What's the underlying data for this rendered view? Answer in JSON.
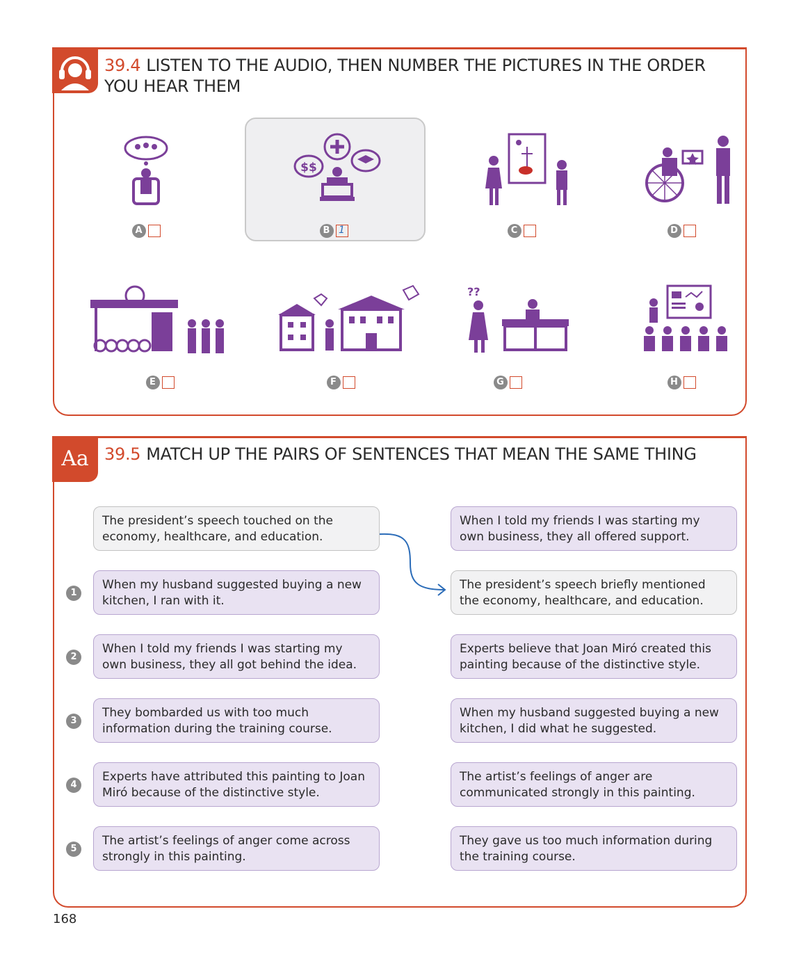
{
  "exercise1": {
    "number": "39.4",
    "title": "LISTEN TO THE AUDIO, THEN NUMBER THE PICTURES IN THE ORDER YOU HEAR THEM",
    "icon": "headphones-person-icon",
    "pictures": [
      {
        "letter": "A",
        "answer": ""
      },
      {
        "letter": "B",
        "answer": "1"
      },
      {
        "letter": "C",
        "answer": ""
      },
      {
        "letter": "D",
        "answer": ""
      },
      {
        "letter": "E",
        "answer": ""
      },
      {
        "letter": "F",
        "answer": ""
      },
      {
        "letter": "G",
        "answer": ""
      },
      {
        "letter": "H",
        "answer": ""
      }
    ]
  },
  "exercise2": {
    "number": "39.5",
    "title": "MATCH UP THE PAIRS OF SENTENCES THAT MEAN THE SAME THING",
    "badge": "Aa",
    "example_left": "The president’s speech touched on the economy, healthcare, and education.",
    "left": [
      {
        "num": "1",
        "text": "When my husband suggested buying a new kitchen, I ran with it."
      },
      {
        "num": "2",
        "text": "When I told my friends I was starting my own business, they all got behind the idea."
      },
      {
        "num": "3",
        "text": "They bombarded us with too much information during the training course."
      },
      {
        "num": "4",
        "text": "Experts have attributed this painting to Joan Miró because of the distinctive style."
      },
      {
        "num": "5",
        "text": "The artist’s feelings of anger come across strongly in this painting."
      }
    ],
    "right": [
      {
        "text": "When I told my friends I was starting my own business, they all offered support."
      },
      {
        "text": "The president’s speech briefly mentioned the economy, healthcare, and education.",
        "example": true
      },
      {
        "text": "Experts believe that Joan Miró created this painting because of the distinctive style."
      },
      {
        "text": "When my husband suggested buying a new kitchen, I did what he suggested."
      },
      {
        "text": "The artist’s feelings of anger are communicated strongly in this painting."
      },
      {
        "text": "They gave us too much information during the training course."
      }
    ]
  },
  "colors": {
    "accent": "#d24a2c",
    "illustration": "#7b3f99",
    "box_fill": "#e9e2f2",
    "arrow": "#2b6cb8"
  },
  "page_number": "168"
}
